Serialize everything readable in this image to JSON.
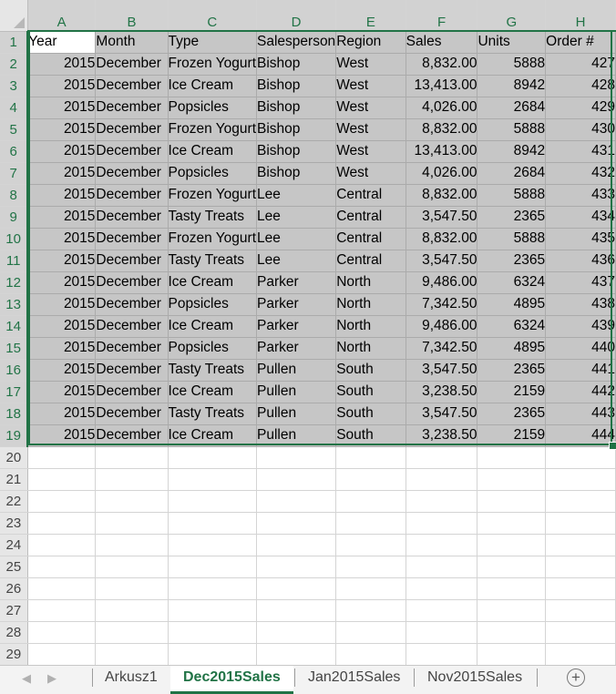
{
  "sheet": {
    "columns": [
      "A",
      "B",
      "C",
      "D",
      "E",
      "F",
      "G",
      "H"
    ],
    "header_row": [
      "Year",
      "Month",
      "Type",
      "Salesperson",
      "Region",
      "Sales",
      "Units",
      "Order #"
    ],
    "data_rows": [
      [
        "2015",
        "December",
        "Frozen Yogurt",
        "Bishop",
        "West",
        "8,832.00",
        "5888",
        "427"
      ],
      [
        "2015",
        "December",
        "Ice Cream",
        "Bishop",
        "West",
        "13,413.00",
        "8942",
        "428"
      ],
      [
        "2015",
        "December",
        "Popsicles",
        "Bishop",
        "West",
        "4,026.00",
        "2684",
        "429"
      ],
      [
        "2015",
        "December",
        "Frozen Yogurt",
        "Bishop",
        "West",
        "8,832.00",
        "5888",
        "430"
      ],
      [
        "2015",
        "December",
        "Ice Cream",
        "Bishop",
        "West",
        "13,413.00",
        "8942",
        "431"
      ],
      [
        "2015",
        "December",
        "Popsicles",
        "Bishop",
        "West",
        "4,026.00",
        "2684",
        "432"
      ],
      [
        "2015",
        "December",
        "Frozen Yogurt",
        "Lee",
        "Central",
        "8,832.00",
        "5888",
        "433"
      ],
      [
        "2015",
        "December",
        "Tasty Treats",
        "Lee",
        "Central",
        "3,547.50",
        "2365",
        "434"
      ],
      [
        "2015",
        "December",
        "Frozen Yogurt",
        "Lee",
        "Central",
        "8,832.00",
        "5888",
        "435"
      ],
      [
        "2015",
        "December",
        "Tasty Treats",
        "Lee",
        "Central",
        "3,547.50",
        "2365",
        "436"
      ],
      [
        "2015",
        "December",
        "Ice Cream",
        "Parker",
        "North",
        "9,486.00",
        "6324",
        "437"
      ],
      [
        "2015",
        "December",
        "Popsicles",
        "Parker",
        "North",
        "7,342.50",
        "4895",
        "438"
      ],
      [
        "2015",
        "December",
        "Ice Cream",
        "Parker",
        "North",
        "9,486.00",
        "6324",
        "439"
      ],
      [
        "2015",
        "December",
        "Popsicles",
        "Parker",
        "North",
        "7,342.50",
        "4895",
        "440"
      ],
      [
        "2015",
        "December",
        "Tasty Treats",
        "Pullen",
        "South",
        "3,547.50",
        "2365",
        "441"
      ],
      [
        "2015",
        "December",
        "Ice Cream",
        "Pullen",
        "South",
        "3,238.50",
        "2159",
        "442"
      ],
      [
        "2015",
        "December",
        "Tasty Treats",
        "Pullen",
        "South",
        "3,547.50",
        "2365",
        "443"
      ],
      [
        "2015",
        "December",
        "Ice Cream",
        "Pullen",
        "South",
        "3,238.50",
        "2159",
        "444"
      ]
    ],
    "row_numbers": [
      "1",
      "2",
      "3",
      "4",
      "5",
      "6",
      "7",
      "8",
      "9",
      "10",
      "11",
      "12",
      "13",
      "14",
      "15",
      "16",
      "17",
      "18",
      "19",
      "20",
      "21",
      "22",
      "23",
      "24",
      "25",
      "26",
      "27",
      "28",
      "29"
    ],
    "selected_range": "A1:H19",
    "active_cell": "A1"
  },
  "tabs": {
    "prev_icon": "◀",
    "next_icon": "▶",
    "items": [
      "Arkusz1",
      "Dec2015Sales",
      "Jan2015Sales",
      "Nov2015Sales"
    ],
    "active": "Dec2015Sales",
    "add_icon": "+"
  },
  "colors": {
    "accent": "#217346",
    "selection_fill": "#c6c6c6",
    "header_fill": "#e6e6e6"
  }
}
